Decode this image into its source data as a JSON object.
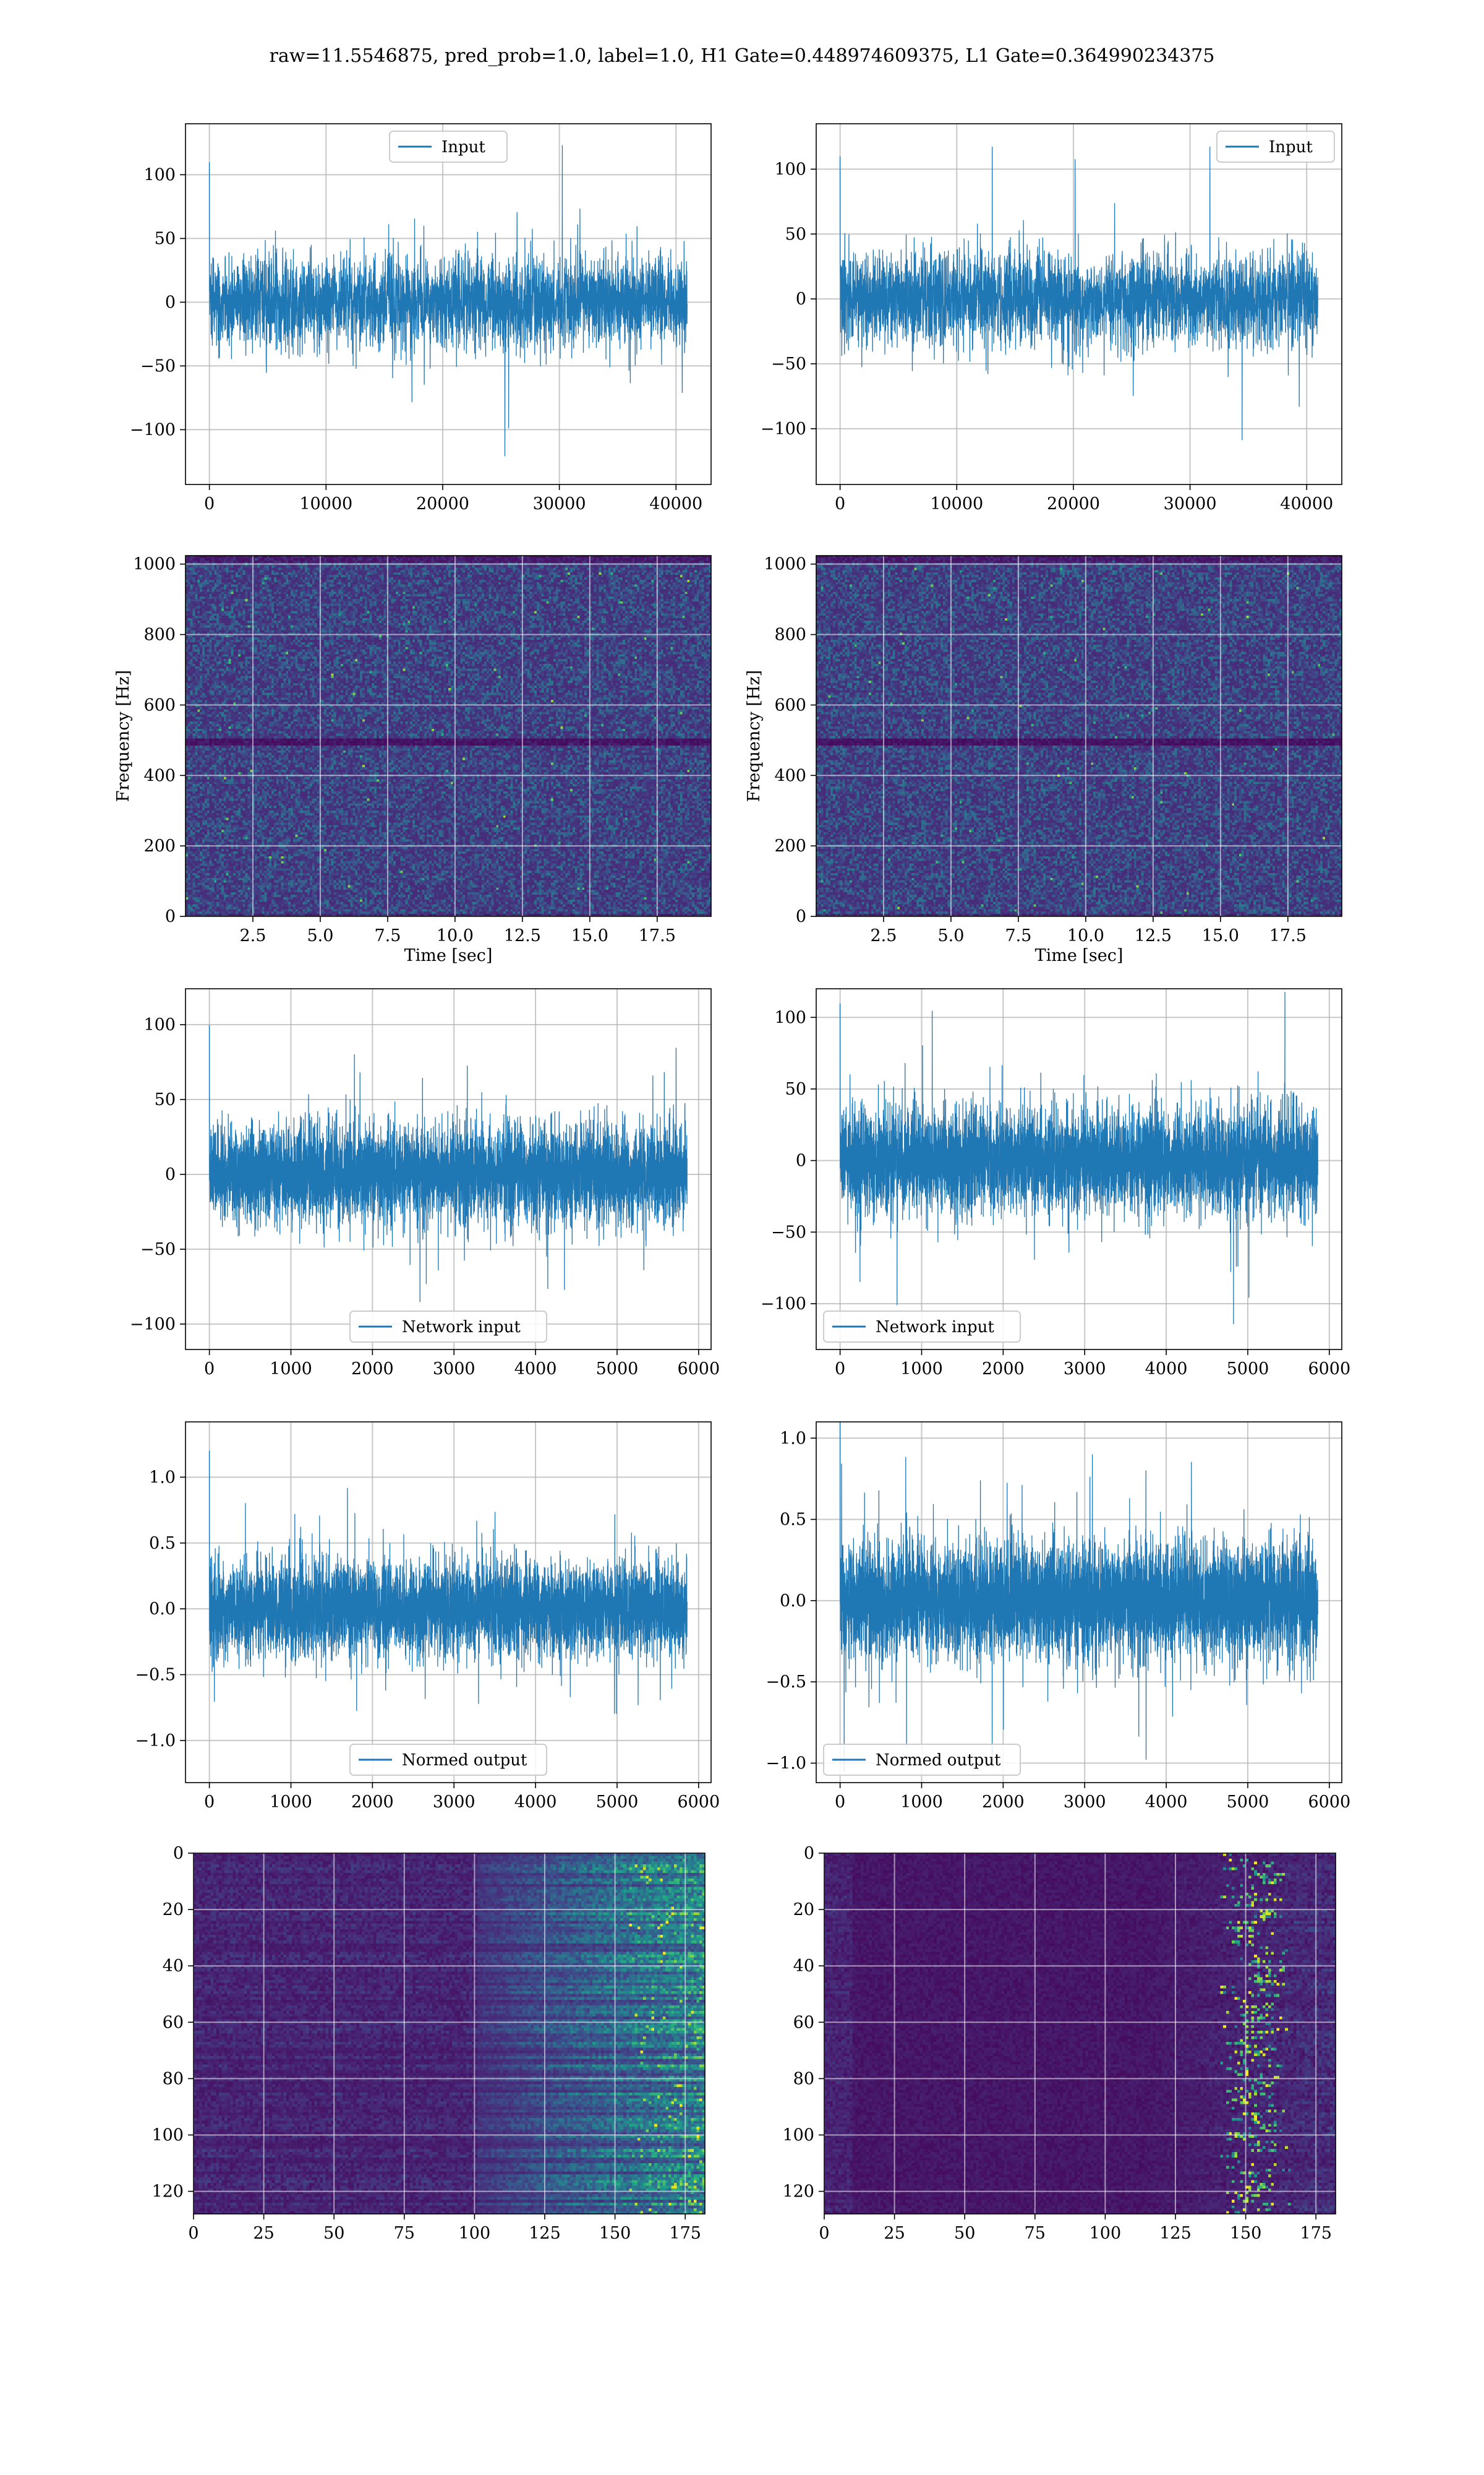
{
  "figure": {
    "suptitle": "raw=11.5546875, pred_prob=1.0, label=1.0, H1 Gate=0.448974609375, L1 Gate=0.364990234375",
    "colors": {
      "line": "#1f77b4",
      "grid": "#b0b0b0"
    },
    "colormap": "viridis"
  },
  "chart_data": [
    {
      "id": "h1-input",
      "type": "line",
      "legend": "top-center",
      "grid": true,
      "series": [
        {
          "name": "Input",
          "amplitude": 55,
          "n_points": 40960
        }
      ],
      "xlim": [
        -2048,
        43008
      ],
      "ylim": [
        -143,
        140
      ],
      "xticks": [
        0,
        10000,
        20000,
        30000,
        40000
      ],
      "yticks": [
        -100,
        -50,
        0,
        50,
        100
      ]
    },
    {
      "id": "l1-input",
      "type": "line",
      "legend": "top-right",
      "grid": true,
      "series": [
        {
          "name": "Input",
          "amplitude": 55,
          "n_points": 40960
        }
      ],
      "xlim": [
        -2048,
        43008
      ],
      "ylim": [
        -143,
        135
      ],
      "xticks": [
        0,
        10000,
        20000,
        30000,
        40000
      ],
      "yticks": [
        -100,
        -50,
        0,
        50,
        100
      ]
    },
    {
      "id": "h1-spectrogram",
      "type": "heatmap",
      "grid": true,
      "xlabel": "Time [sec]",
      "ylabel": "Frequency [Hz]",
      "xlim": [
        0,
        19.5
      ],
      "ylim": [
        0,
        1024
      ],
      "xticks": [
        2.5,
        5.0,
        7.5,
        10.0,
        12.5,
        15.0,
        17.5
      ],
      "yticks": [
        0,
        200,
        400,
        600,
        800,
        1000
      ],
      "xtick_labels": [
        "2.5",
        "5.0",
        "7.5",
        "10.0",
        "12.5",
        "15.0",
        "17.5"
      ],
      "pattern": "noise",
      "dark_band_hz": 500
    },
    {
      "id": "l1-spectrogram",
      "type": "heatmap",
      "grid": true,
      "xlabel": "Time [sec]",
      "ylabel": "Frequency [Hz]",
      "xlim": [
        0,
        19.5
      ],
      "ylim": [
        0,
        1024
      ],
      "xticks": [
        2.5,
        5.0,
        7.5,
        10.0,
        12.5,
        15.0,
        17.5
      ],
      "yticks": [
        0,
        200,
        400,
        600,
        800,
        1000
      ],
      "xtick_labels": [
        "2.5",
        "5.0",
        "7.5",
        "10.0",
        "12.5",
        "15.0",
        "17.5"
      ],
      "pattern": "noise",
      "dark_band_hz": 500
    },
    {
      "id": "h1-network-input",
      "type": "line",
      "legend": "bottom-center",
      "grid": true,
      "series": [
        {
          "name": "Network input",
          "amplitude": 50,
          "n_points": 5860
        }
      ],
      "xlim": [
        -293,
        6153
      ],
      "ylim": [
        -117,
        124
      ],
      "xticks": [
        0,
        1000,
        2000,
        3000,
        4000,
        5000,
        6000
      ],
      "yticks": [
        -100,
        -50,
        0,
        50,
        100
      ]
    },
    {
      "id": "l1-network-input",
      "type": "line",
      "legend": "bottom-left",
      "grid": true,
      "series": [
        {
          "name": "Network input",
          "amplitude": 55,
          "n_points": 5860
        }
      ],
      "xlim": [
        -293,
        6153
      ],
      "ylim": [
        -132,
        120
      ],
      "xticks": [
        0,
        1000,
        2000,
        3000,
        4000,
        5000,
        6000
      ],
      "yticks": [
        -100,
        -50,
        0,
        50,
        100
      ]
    },
    {
      "id": "h1-normed-output",
      "type": "line",
      "legend": "bottom-center",
      "grid": true,
      "series": [
        {
          "name": "Normed output",
          "amplitude": 0.55,
          "n_points": 5860
        }
      ],
      "xlim": [
        -293,
        6153
      ],
      "ylim": [
        -1.32,
        1.42
      ],
      "xticks": [
        0,
        1000,
        2000,
        3000,
        4000,
        5000,
        6000
      ],
      "yticks": [
        -1.0,
        -0.5,
        0.0,
        0.5,
        1.0
      ],
      "ytick_labels": [
        "−1.0",
        "−0.5",
        "0.0",
        "0.5",
        "1.0"
      ]
    },
    {
      "id": "l1-normed-output",
      "type": "line",
      "legend": "bottom-left",
      "grid": true,
      "series": [
        {
          "name": "Normed output",
          "amplitude": 0.55,
          "n_points": 5860
        }
      ],
      "xlim": [
        -293,
        6153
      ],
      "ylim": [
        -1.12,
        1.1
      ],
      "xticks": [
        0,
        1000,
        2000,
        3000,
        4000,
        5000,
        6000
      ],
      "yticks": [
        -1.0,
        -0.5,
        0.0,
        0.5,
        1.0
      ],
      "ytick_labels": [
        "−1.0",
        "−0.5",
        "0.0",
        "0.5",
        "1.0"
      ]
    },
    {
      "id": "h1-feature-map",
      "type": "heatmap",
      "grid": true,
      "y_inverted": true,
      "xlim": [
        0,
        182
      ],
      "ylim": [
        0,
        128
      ],
      "xticks": [
        0,
        25,
        50,
        75,
        100,
        125,
        150,
        175
      ],
      "yticks": [
        0,
        20,
        40,
        60,
        80,
        100,
        120
      ],
      "pattern": "rows-bright-right"
    },
    {
      "id": "l1-feature-map",
      "type": "heatmap",
      "grid": true,
      "y_inverted": true,
      "xlim": [
        0,
        182
      ],
      "ylim": [
        0,
        128
      ],
      "xticks": [
        0,
        25,
        50,
        75,
        100,
        125,
        150,
        175
      ],
      "yticks": [
        0,
        20,
        40,
        60,
        80,
        100,
        120
      ],
      "pattern": "sparse-bright-right"
    }
  ]
}
